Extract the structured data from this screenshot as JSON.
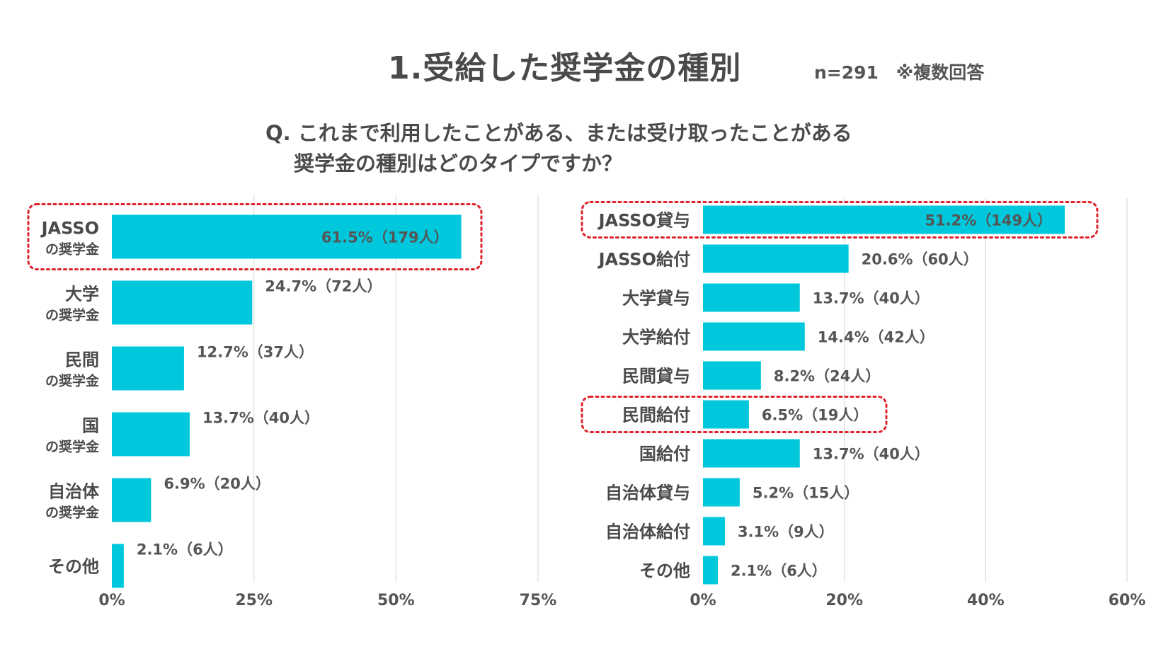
{
  "header": {
    "title": "1.受給した奨学金の種別",
    "note": "n=291　※複数回答",
    "question_line1": "Q. これまで利用したことがある、または受け取ったことがある",
    "question_line2": "奨学金の種別はどのタイプですか？"
  },
  "colors": {
    "bar": "#00C8DC",
    "highlight_border": "#E0212B",
    "grid": "#DDDDDD"
  },
  "chart_data": [
    {
      "type": "bar",
      "orientation": "horizontal",
      "title": "",
      "xlim": [
        0,
        75
      ],
      "ticks": [
        "0%",
        "25%",
        "50%",
        "75%"
      ],
      "tick_values": [
        0,
        25,
        50,
        75
      ],
      "categories": [
        {
          "line1": "JASSO",
          "line2": "の奨学金"
        },
        {
          "line1": "大学",
          "line2": "の奨学金"
        },
        {
          "line1": "民間",
          "line2": "の奨学金"
        },
        {
          "line1": "国",
          "line2": "の奨学金"
        },
        {
          "line1": "自治体",
          "line2": "の奨学金"
        },
        {
          "line1": "その他",
          "line2": ""
        }
      ],
      "values": [
        61.5,
        24.7,
        12.7,
        13.7,
        6.9,
        2.1
      ],
      "labels": [
        "61.5%（179人）",
        "24.7%（72人）",
        "12.7%（37人）",
        "13.7%（40人）",
        "6.9%（20人）",
        "2.1%（6人）"
      ],
      "highlighted": [
        0
      ]
    },
    {
      "type": "bar",
      "orientation": "horizontal",
      "title": "",
      "xlim": [
        0,
        60
      ],
      "ticks": [
        "0%",
        "20%",
        "40%",
        "60%"
      ],
      "tick_values": [
        0,
        20,
        40,
        60
      ],
      "categories": [
        {
          "line1": "JASSO貸与",
          "line2": ""
        },
        {
          "line1": "JASSO給付",
          "line2": ""
        },
        {
          "line1": "大学貸与",
          "line2": ""
        },
        {
          "line1": "大学給付",
          "line2": ""
        },
        {
          "line1": "民間貸与",
          "line2": ""
        },
        {
          "line1": "民間給付",
          "line2": ""
        },
        {
          "line1": "国給付",
          "line2": ""
        },
        {
          "line1": "自治体貸与",
          "line2": ""
        },
        {
          "line1": "自治体給付",
          "line2": ""
        },
        {
          "line1": "その他",
          "line2": ""
        }
      ],
      "values": [
        51.2,
        20.6,
        13.7,
        14.4,
        8.2,
        6.5,
        13.7,
        5.2,
        3.1,
        2.1
      ],
      "labels": [
        "51.2%（149人）",
        "20.6%（60人）",
        "13.7%（40人）",
        "14.4%（42人）",
        "8.2%（24人）",
        "6.5%（19人）",
        "13.7%（40人）",
        "5.2%（15人）",
        "3.1%（9人）",
        "2.1%（6人）"
      ],
      "highlighted": [
        0,
        5
      ]
    }
  ]
}
